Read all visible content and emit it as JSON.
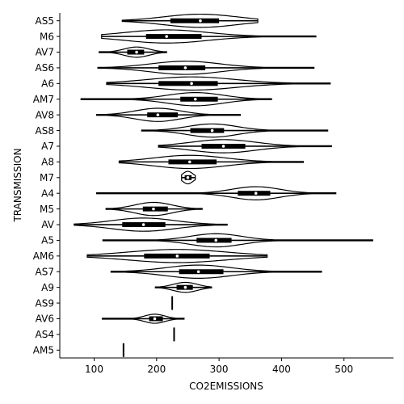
{
  "chart_data": {
    "type": "violin",
    "orientation": "horizontal",
    "xlabel": "CO2EMISSIONS",
    "ylabel": "TRANSMISSION",
    "xlim": [
      45,
      487
    ],
    "xticks": [
      100,
      200,
      300,
      400,
      500
    ],
    "grid": false,
    "categories": [
      "AS5",
      "M6",
      "AV7",
      "AS6",
      "A6",
      "AM7",
      "AV8",
      "AS8",
      "A7",
      "A8",
      "M7",
      "A4",
      "M5",
      "AV",
      "A5",
      "AM6",
      "AS7",
      "A9",
      "AS9",
      "AV6",
      "AS4",
      "AM5"
    ],
    "violins": [
      {
        "category": "AS5",
        "min": 145,
        "q1": 222,
        "median": 270,
        "q3": 300,
        "max": 362
      },
      {
        "category": "M6",
        "min": 112,
        "q1": 183,
        "median": 216,
        "q3": 272,
        "max": 455
      },
      {
        "category": "AV7",
        "min": 108,
        "q1": 153,
        "median": 168,
        "q3": 180,
        "max": 216
      },
      {
        "category": "AS6",
        "min": 106,
        "q1": 203,
        "median": 246,
        "q3": 278,
        "max": 452
      },
      {
        "category": "A6",
        "min": 120,
        "q1": 203,
        "median": 256,
        "q3": 298,
        "max": 478
      },
      {
        "category": "AM7",
        "min": 79,
        "q1": 238,
        "median": 262,
        "q3": 298,
        "max": 384
      },
      {
        "category": "AV8",
        "min": 104,
        "q1": 185,
        "median": 202,
        "q3": 234,
        "max": 334
      },
      {
        "category": "AS8",
        "min": 176,
        "q1": 254,
        "median": 289,
        "q3": 308,
        "max": 474
      },
      {
        "category": "A7",
        "min": 203,
        "q1": 272,
        "median": 307,
        "q3": 342,
        "max": 480
      },
      {
        "category": "A8",
        "min": 140,
        "q1": 219,
        "median": 253,
        "q3": 296,
        "max": 435
      },
      {
        "category": "M7",
        "min": 240,
        "q1": 245,
        "median": 250,
        "q3": 256,
        "max": 262
      },
      {
        "category": "A4",
        "min": 104,
        "q1": 330,
        "median": 359,
        "q3": 382,
        "max": 487
      },
      {
        "category": "M5",
        "min": 119,
        "q1": 178,
        "median": 195,
        "q3": 218,
        "max": 273
      },
      {
        "category": "AV",
        "min": 68,
        "q1": 145,
        "median": 179,
        "q3": 214,
        "max": 313
      },
      {
        "category": "A5",
        "min": 114,
        "q1": 264,
        "median": 295,
        "q3": 320,
        "max": 546
      },
      {
        "category": "AM6",
        "min": 89,
        "q1": 180,
        "median": 233,
        "q3": 285,
        "max": 377
      },
      {
        "category": "AS7",
        "min": 127,
        "q1": 236,
        "median": 267,
        "q3": 307,
        "max": 464
      },
      {
        "category": "A9",
        "min": 198,
        "q1": 232,
        "median": 246,
        "q3": 258,
        "max": 288
      },
      {
        "category": "AS9",
        "min": 225,
        "q1": 225,
        "median": 225,
        "q3": 225,
        "max": 225
      },
      {
        "category": "AV6",
        "min": 113,
        "q1": 188,
        "median": 197,
        "q3": 210,
        "max": 244
      },
      {
        "category": "AS4",
        "min": 228,
        "q1": 228,
        "median": 228,
        "q3": 228,
        "max": 228
      },
      {
        "category": "AM5",
        "min": 147,
        "q1": 147,
        "median": 147,
        "q3": 147,
        "max": 147
      }
    ]
  }
}
